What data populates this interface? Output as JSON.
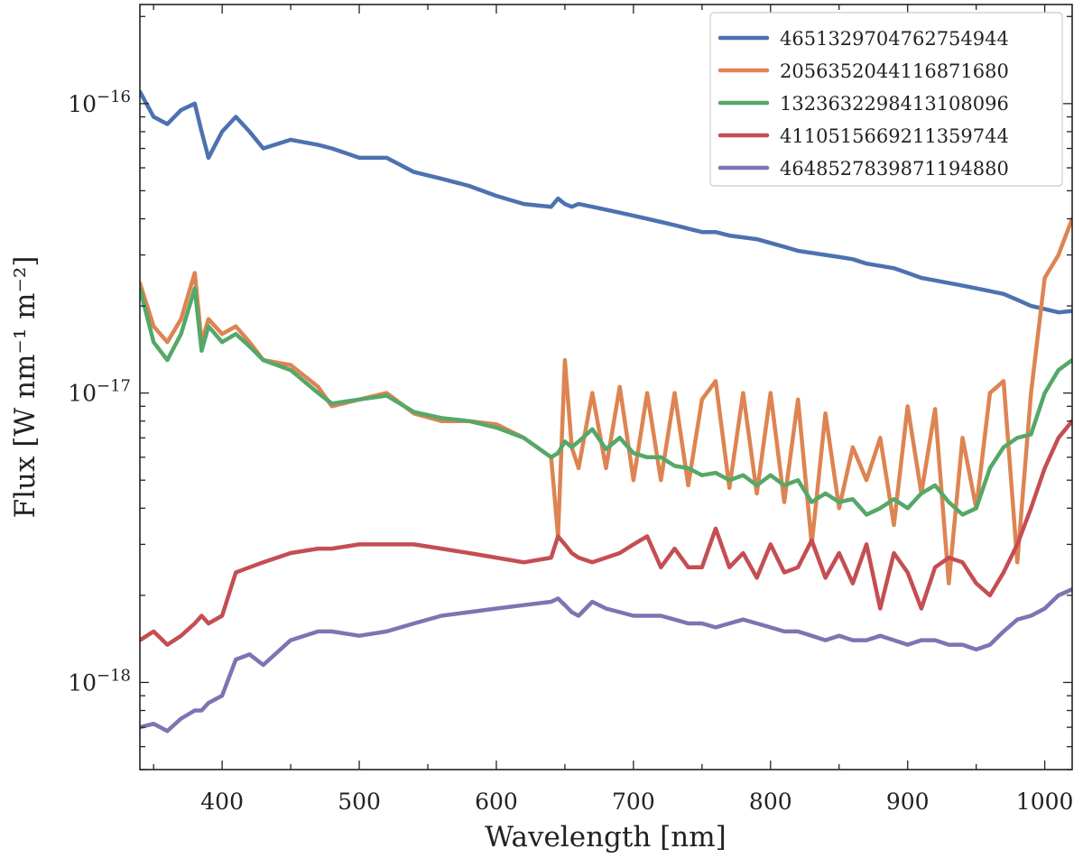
{
  "chart_data": {
    "type": "line",
    "title": "",
    "xlabel": "Wavelength [nm]",
    "ylabel": "Flux [W nm⁻¹ m⁻²]",
    "xlim": [
      340,
      1020
    ],
    "ylim": [
      5e-19,
      2.2e-16
    ],
    "yscale": "log",
    "x_ticks": [
      400,
      500,
      600,
      700,
      800,
      900,
      1000
    ],
    "x_tick_labels": [
      "400",
      "500",
      "600",
      "700",
      "800",
      "900",
      "1000"
    ],
    "y_ticks": [
      {
        "value": 1e-18,
        "base": "10",
        "exponent": "−18"
      },
      {
        "value": 1e-17,
        "base": "10",
        "exponent": "−17"
      },
      {
        "value": 1e-16,
        "base": "10",
        "exponent": "−16"
      }
    ],
    "grid": false,
    "legend_position": "top-right",
    "x": [
      340,
      350,
      360,
      370,
      380,
      385,
      390,
      400,
      410,
      420,
      430,
      450,
      470,
      480,
      500,
      520,
      540,
      560,
      580,
      600,
      620,
      640,
      645,
      650,
      655,
      660,
      670,
      680,
      690,
      700,
      710,
      720,
      730,
      740,
      750,
      760,
      770,
      780,
      790,
      800,
      810,
      820,
      830,
      840,
      850,
      860,
      870,
      880,
      890,
      900,
      910,
      920,
      930,
      940,
      950,
      960,
      970,
      980,
      990,
      1000,
      1010,
      1020
    ],
    "series": [
      {
        "name": "4651329704762754944",
        "color": "#4c72b0",
        "values": [
          1.1e-16,
          9e-17,
          8.5e-17,
          9.5e-17,
          1e-16,
          8e-17,
          6.5e-17,
          8e-17,
          9e-17,
          8e-17,
          7e-17,
          7.5e-17,
          7.2e-17,
          7e-17,
          6.5e-17,
          6.5e-17,
          5.8e-17,
          5.5e-17,
          5.2e-17,
          4.8e-17,
          4.5e-17,
          4.4e-17,
          4.7e-17,
          4.5e-17,
          4.4e-17,
          4.5e-17,
          4.4e-17,
          4.3e-17,
          4.2e-17,
          4.1e-17,
          4e-17,
          3.9e-17,
          3.8e-17,
          3.7e-17,
          3.6e-17,
          3.6e-17,
          3.5e-17,
          3.45e-17,
          3.4e-17,
          3.3e-17,
          3.2e-17,
          3.1e-17,
          3.05e-17,
          3e-17,
          2.95e-17,
          2.9e-17,
          2.8e-17,
          2.75e-17,
          2.7e-17,
          2.6e-17,
          2.5e-17,
          2.45e-17,
          2.4e-17,
          2.35e-17,
          2.3e-17,
          2.25e-17,
          2.2e-17,
          2.1e-17,
          2e-17,
          1.95e-17,
          1.9e-17,
          1.92e-17
        ]
      },
      {
        "name": "2056352044116871680",
        "color": "#dd8452",
        "values": [
          2.4e-17,
          1.7e-17,
          1.5e-17,
          1.8e-17,
          2.6e-17,
          1.5e-17,
          1.8e-17,
          1.6e-17,
          1.7e-17,
          1.5e-17,
          1.3e-17,
          1.25e-17,
          1.05e-17,
          9e-18,
          9.5e-18,
          1e-17,
          8.5e-18,
          8e-18,
          8e-18,
          7.8e-18,
          7e-18,
          6e-18,
          3.2e-18,
          1.3e-17,
          6.5e-18,
          5.5e-18,
          1e-17,
          5.5e-18,
          1.05e-17,
          5e-18,
          1e-17,
          5e-18,
          1e-17,
          4.8e-18,
          9.5e-18,
          1.1e-17,
          4.7e-18,
          1e-17,
          4.5e-18,
          1e-17,
          4.2e-18,
          9.5e-18,
          3e-18,
          8.5e-18,
          4e-18,
          6.5e-18,
          5e-18,
          7e-18,
          3.5e-18,
          9e-18,
          4.5e-18,
          8.8e-18,
          2.2e-18,
          7e-18,
          4e-18,
          1e-17,
          1.1e-17,
          2.6e-18,
          1e-17,
          2.5e-17,
          3e-17,
          4e-17
        ]
      },
      {
        "name": "1323632298413108096",
        "color": "#55a868",
        "values": [
          2.3e-17,
          1.5e-17,
          1.3e-17,
          1.6e-17,
          2.3e-17,
          1.4e-17,
          1.7e-17,
          1.5e-17,
          1.6e-17,
          1.45e-17,
          1.3e-17,
          1.2e-17,
          1e-17,
          9.2e-18,
          9.5e-18,
          9.8e-18,
          8.6e-18,
          8.2e-18,
          8e-18,
          7.6e-18,
          7e-18,
          6e-18,
          6.2e-18,
          6.8e-18,
          6.5e-18,
          6.8e-18,
          7.5e-18,
          6.4e-18,
          7e-18,
          6.2e-18,
          6e-18,
          6e-18,
          5.6e-18,
          5.5e-18,
          5.2e-18,
          5.3e-18,
          5e-18,
          5.2e-18,
          4.8e-18,
          5.2e-18,
          4.8e-18,
          5e-18,
          4.2e-18,
          4.5e-18,
          4.2e-18,
          4.3e-18,
          3.8e-18,
          4e-18,
          4.3e-18,
          4e-18,
          4.5e-18,
          4.8e-18,
          4.2e-18,
          3.8e-18,
          4e-18,
          5.5e-18,
          6.5e-18,
          7e-18,
          7.2e-18,
          1e-17,
          1.2e-17,
          1.3e-17
        ]
      },
      {
        "name": "4110515669211359744",
        "color": "#c44e52",
        "values": [
          1.4e-18,
          1.5e-18,
          1.35e-18,
          1.45e-18,
          1.6e-18,
          1.7e-18,
          1.6e-18,
          1.7e-18,
          2.4e-18,
          2.5e-18,
          2.6e-18,
          2.8e-18,
          2.9e-18,
          2.9e-18,
          3e-18,
          3e-18,
          3e-18,
          2.9e-18,
          2.8e-18,
          2.7e-18,
          2.6e-18,
          2.7e-18,
          3.2e-18,
          3e-18,
          2.8e-18,
          2.7e-18,
          2.6e-18,
          2.7e-18,
          2.8e-18,
          3e-18,
          3.2e-18,
          2.5e-18,
          2.9e-18,
          2.5e-18,
          2.5e-18,
          3.4e-18,
          2.5e-18,
          2.8e-18,
          2.3e-18,
          3e-18,
          2.4e-18,
          2.5e-18,
          3.1e-18,
          2.3e-18,
          2.8e-18,
          2.2e-18,
          3e-18,
          1.8e-18,
          2.8e-18,
          2.4e-18,
          1.8e-18,
          2.5e-18,
          2.7e-18,
          2.6e-18,
          2.2e-18,
          2e-18,
          2.4e-18,
          3e-18,
          4e-18,
          5.5e-18,
          7e-18,
          8e-18
        ]
      },
      {
        "name": "4648527839871194880",
        "color": "#8172b2",
        "values": [
          7e-19,
          7.2e-19,
          6.8e-19,
          7.5e-19,
          8e-19,
          8e-19,
          8.5e-19,
          9e-19,
          1.2e-18,
          1.25e-18,
          1.15e-18,
          1.4e-18,
          1.5e-18,
          1.5e-18,
          1.45e-18,
          1.5e-18,
          1.6e-18,
          1.7e-18,
          1.75e-18,
          1.8e-18,
          1.85e-18,
          1.9e-18,
          1.95e-18,
          1.85e-18,
          1.75e-18,
          1.7e-18,
          1.9e-18,
          1.8e-18,
          1.75e-18,
          1.7e-18,
          1.7e-18,
          1.7e-18,
          1.65e-18,
          1.6e-18,
          1.6e-18,
          1.55e-18,
          1.6e-18,
          1.65e-18,
          1.6e-18,
          1.55e-18,
          1.5e-18,
          1.5e-18,
          1.45e-18,
          1.4e-18,
          1.45e-18,
          1.4e-18,
          1.4e-18,
          1.45e-18,
          1.4e-18,
          1.35e-18,
          1.4e-18,
          1.4e-18,
          1.35e-18,
          1.35e-18,
          1.3e-18,
          1.35e-18,
          1.5e-18,
          1.65e-18,
          1.7e-18,
          1.8e-18,
          2e-18,
          2.1e-18
        ]
      }
    ]
  }
}
